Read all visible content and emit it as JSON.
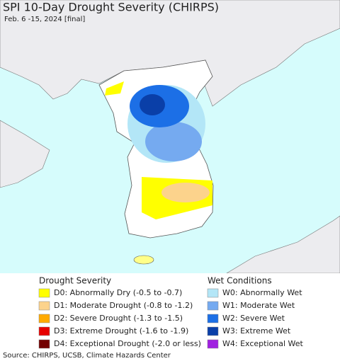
{
  "header": {
    "title": "SPI 10-Day Drought Severity (CHIRPS)",
    "subtitle": "Feb. 6 -15, 2024 [final]"
  },
  "legend": {
    "drought": {
      "title": "Drought Severity",
      "items": [
        {
          "label": "D0: Abnormally Dry (-0.5 to -0.7)",
          "color": "#ffff00"
        },
        {
          "label": "D1: Moderate Drought (-0.8 to -1.2)",
          "color": "#fcd38c"
        },
        {
          "label": "D2: Severe Drought (-1.3 to -1.5)",
          "color": "#ffaa00"
        },
        {
          "label": "D3: Extreme Drought (-1.6 to -1.9)",
          "color": "#e60000"
        },
        {
          "label": "D4: Exceptional Drought (-2.0 or less)",
          "color": "#730000"
        }
      ]
    },
    "wet": {
      "title": "Wet Conditions",
      "items": [
        {
          "label": "W0: Abnormally Wet",
          "color": "#b3e6f7"
        },
        {
          "label": "W1: Moderate Wet",
          "color": "#75aaf0"
        },
        {
          "label": "W2: Severe Wet",
          "color": "#1c6fe6"
        },
        {
          "label": "W3: Extreme Wet",
          "color": "#0a3fa8"
        },
        {
          "label": "W4: Exceptional Wet",
          "color": "#a020e0"
        }
      ]
    }
  },
  "footer": {
    "source": "Source: CHIRPS, UCSB, Climate Hazards Center"
  }
}
